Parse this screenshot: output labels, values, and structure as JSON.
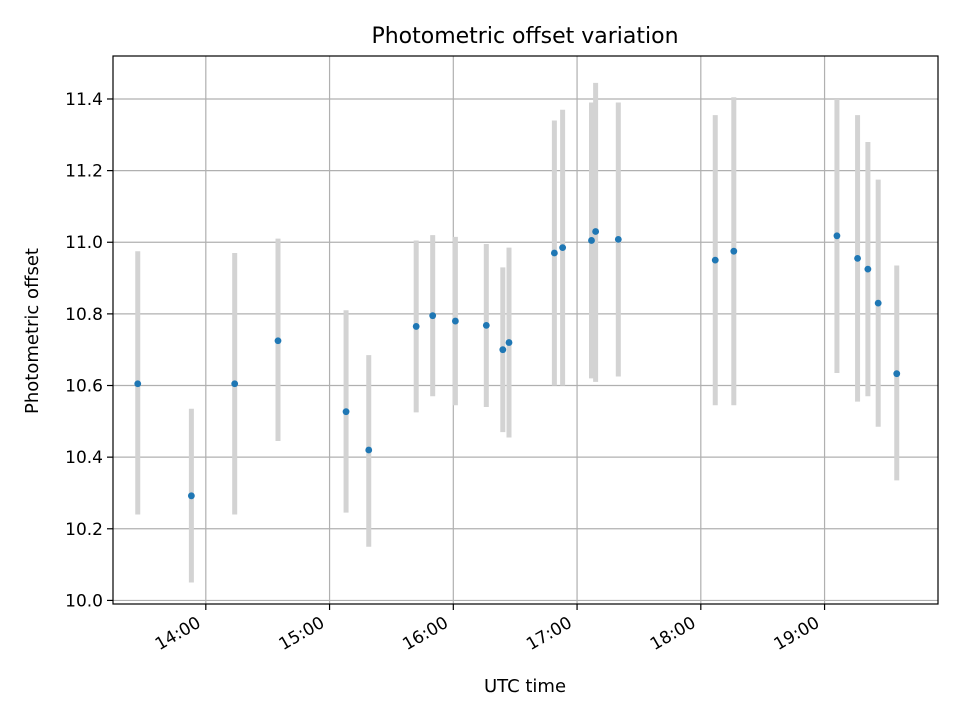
{
  "chart_data": {
    "type": "scatter",
    "title": "Photometric offset variation",
    "xlabel": "UTC time",
    "ylabel": "Photometric offset",
    "xlim": [
      "13:15",
      "19:55"
    ],
    "ylim": [
      9.99,
      11.52
    ],
    "x_ticks": [
      "14:00",
      "15:00",
      "16:00",
      "17:00",
      "18:00",
      "19:00"
    ],
    "y_ticks": [
      "10.0",
      "10.2",
      "10.4",
      "10.6",
      "10.8",
      "11.0",
      "11.2",
      "11.4"
    ],
    "grid": true,
    "colors": {
      "point": "#1f77b4",
      "errorbar": "#d3d3d3",
      "grid": "#b0b0b0"
    },
    "points": [
      {
        "x": "13:27",
        "y": 10.605,
        "low": 10.24,
        "high": 10.975
      },
      {
        "x": "13:53",
        "y": 10.292,
        "low": 10.05,
        "high": 10.535
      },
      {
        "x": "14:14",
        "y": 10.605,
        "low": 10.24,
        "high": 10.97
      },
      {
        "x": "14:35",
        "y": 10.725,
        "low": 10.445,
        "high": 11.01
      },
      {
        "x": "15:08",
        "y": 10.527,
        "low": 10.245,
        "high": 10.81
      },
      {
        "x": "15:19",
        "y": 10.42,
        "low": 10.15,
        "high": 10.685
      },
      {
        "x": "15:42",
        "y": 10.765,
        "low": 10.525,
        "high": 11.005
      },
      {
        "x": "15:50",
        "y": 10.795,
        "low": 10.57,
        "high": 11.02
      },
      {
        "x": "16:01",
        "y": 10.78,
        "low": 10.545,
        "high": 11.015
      },
      {
        "x": "16:16",
        "y": 10.768,
        "low": 10.54,
        "high": 10.995
      },
      {
        "x": "16:24",
        "y": 10.7,
        "low": 10.47,
        "high": 10.93
      },
      {
        "x": "16:27",
        "y": 10.72,
        "low": 10.455,
        "high": 10.985
      },
      {
        "x": "16:49",
        "y": 10.97,
        "low": 10.6,
        "high": 11.34
      },
      {
        "x": "16:53",
        "y": 10.985,
        "low": 10.6,
        "high": 11.37
      },
      {
        "x": "17:07",
        "y": 11.005,
        "low": 10.62,
        "high": 11.39
      },
      {
        "x": "17:09",
        "y": 11.03,
        "low": 10.61,
        "high": 11.445
      },
      {
        "x": "17:20",
        "y": 11.008,
        "low": 10.625,
        "high": 11.39
      },
      {
        "x": "18:07",
        "y": 10.95,
        "low": 10.545,
        "high": 11.355
      },
      {
        "x": "18:16",
        "y": 10.975,
        "low": 10.545,
        "high": 11.405
      },
      {
        "x": "19:06",
        "y": 11.018,
        "low": 10.635,
        "high": 11.4
      },
      {
        "x": "19:16",
        "y": 10.955,
        "low": 10.555,
        "high": 11.355
      },
      {
        "x": "19:21",
        "y": 10.925,
        "low": 10.57,
        "high": 11.28
      },
      {
        "x": "19:26",
        "y": 10.83,
        "low": 10.485,
        "high": 11.175
      },
      {
        "x": "19:35",
        "y": 10.633,
        "low": 10.335,
        "high": 10.935
      }
    ]
  }
}
